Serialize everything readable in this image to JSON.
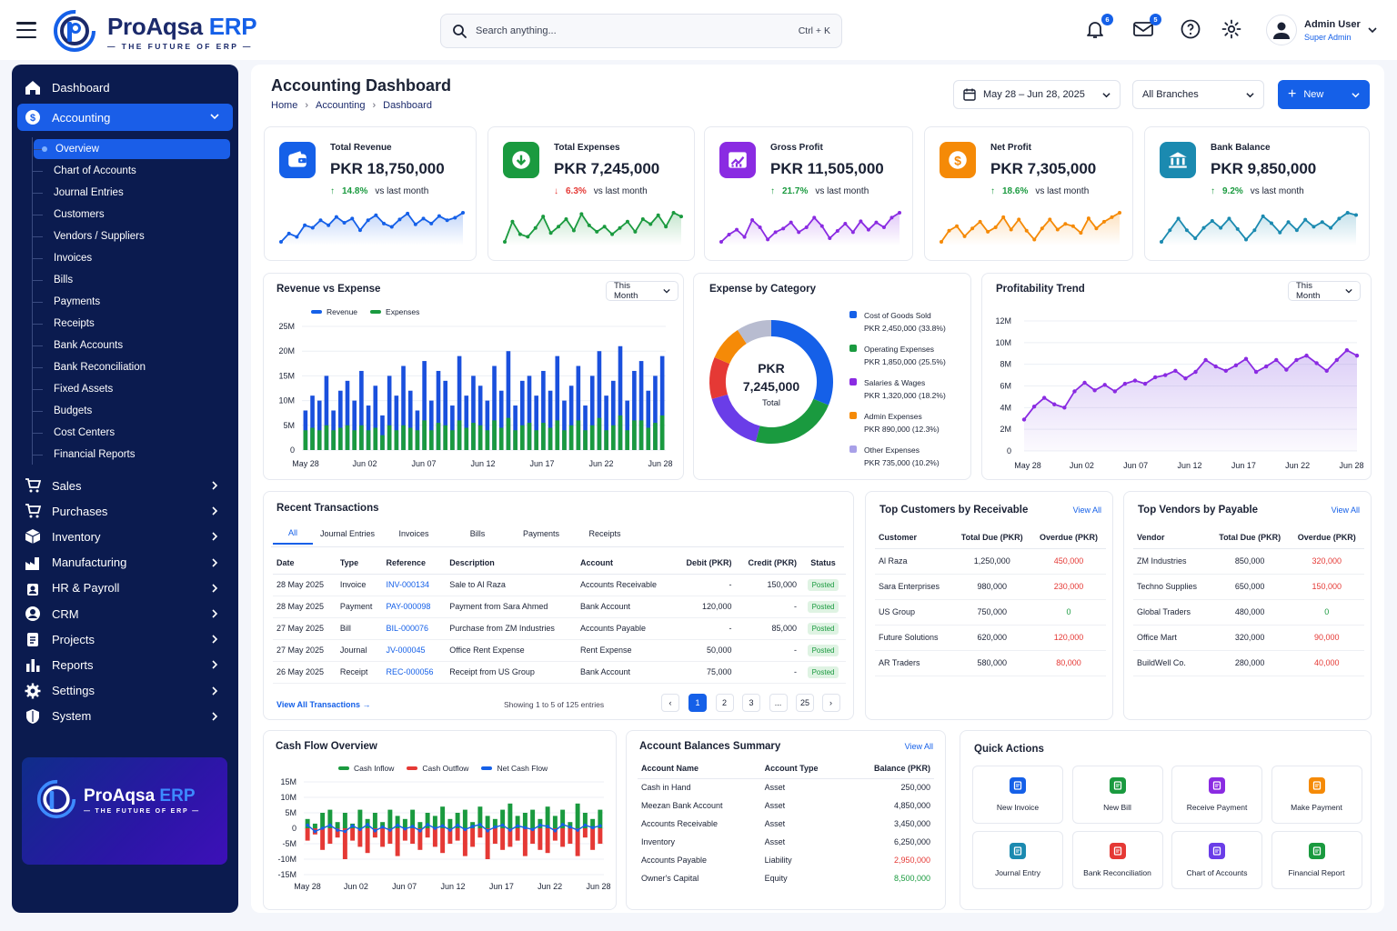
{
  "brand": {
    "name_a": "ProAqsa",
    "name_b": "ERP",
    "tagline": "— THE FUTURE OF ERP —"
  },
  "search": {
    "placeholder": "Search anything...",
    "shortcut": "Ctrl + K"
  },
  "header": {
    "notifications_count": "6",
    "messages_count": "5",
    "user_name": "Admin User",
    "user_role": "Super Admin"
  },
  "colors": {
    "primary": "#1560e8",
    "navy": "#0b1b4f",
    "green": "#1a9a3f",
    "red": "#e53935",
    "purple": "#8a2be2",
    "orange": "#f58a07",
    "teal": "#1b8ab0"
  },
  "sidebar": {
    "dashboard": "Dashboard",
    "accounting": "Accounting",
    "sub": [
      "Overview",
      "Chart of Accounts",
      "Journal Entries",
      "Customers",
      "Vendors / Suppliers",
      "Invoices",
      "Bills",
      "Payments",
      "Receipts",
      "Bank Accounts",
      "Bank Reconciliation",
      "Fixed Assets",
      "Budgets",
      "Cost Centers",
      "Financial Reports"
    ],
    "modules": [
      {
        "label": "Sales",
        "icon": "cart-icon"
      },
      {
        "label": "Purchases",
        "icon": "cart-icon"
      },
      {
        "label": "Inventory",
        "icon": "box-icon"
      },
      {
        "label": "Manufacturing",
        "icon": "factory-icon"
      },
      {
        "label": "HR & Payroll",
        "icon": "people-icon"
      },
      {
        "label": "CRM",
        "icon": "user-circle-icon"
      },
      {
        "label": "Projects",
        "icon": "clipboard-icon"
      },
      {
        "label": "Reports",
        "icon": "bar-chart-icon"
      },
      {
        "label": "Settings",
        "icon": "gear-icon"
      },
      {
        "label": "System",
        "icon": "shield-icon"
      }
    ]
  },
  "page": {
    "title": "Accounting Dashboard",
    "crumbs": [
      "Home",
      "Accounting",
      "Dashboard"
    ],
    "date_range": "May 28 – Jun 28, 2025",
    "branch": "All Branches",
    "new_label": "New"
  },
  "kpis": [
    {
      "label": "Total Revenue",
      "value": "PKR 18,750,000",
      "pct": "14.8%",
      "dir": "up",
      "note": "vs last month",
      "color": "#1560e8",
      "icon": "wallet-icon",
      "spark": [
        3,
        4,
        3.6,
        5,
        4.7,
        5.6,
        5,
        6,
        5.3,
        5.8,
        4.4,
        5.6,
        6.2,
        5.2,
        4.8,
        5.7,
        6.4,
        5.1,
        5.8,
        5.2,
        6.1,
        5.6,
        5.9,
        6.5
      ]
    },
    {
      "label": "Total Expenses",
      "value": "PKR 7,245,000",
      "pct": "6.3%",
      "dir": "down",
      "note": "vs last month",
      "color": "#1a9a3f",
      "icon": "download-circle-icon",
      "spark": [
        4,
        5.6,
        4.6,
        4.4,
        5.1,
        6,
        4.7,
        5.2,
        5.8,
        4.9,
        6.2,
        5.3,
        4.8,
        5.2,
        4.6,
        5.1,
        5.6,
        4.8,
        5.8,
        5.4,
        6.1,
        5.2,
        6.3,
        6
      ]
    },
    {
      "label": "Gross Profit",
      "value": "PKR 11,505,000",
      "pct": "21.7%",
      "dir": "up",
      "note": "vs last month",
      "color": "#8a2be2",
      "icon": "trend-chart-icon",
      "spark": [
        3.6,
        4.2,
        4.6,
        4,
        5.4,
        4.8,
        3.8,
        4.4,
        4.7,
        5.2,
        4.4,
        4.8,
        5.6,
        4.9,
        3.9,
        4.5,
        5.1,
        4.4,
        5.3,
        4.6,
        5.2,
        4.8,
        5.6,
        6
      ]
    },
    {
      "label": "Net Profit",
      "value": "PKR 7,305,000",
      "pct": "18.6%",
      "dir": "up",
      "note": "vs last month",
      "color": "#f58a07",
      "icon": "dollar-icon",
      "spark": [
        3.4,
        4.4,
        4.8,
        3.9,
        4.6,
        5.2,
        4.3,
        4.7,
        5.6,
        4.5,
        5.4,
        4.4,
        3.6,
        4.6,
        5.4,
        4.5,
        5,
        4.8,
        4.2,
        5.5,
        4.6,
        5.2,
        5.6,
        6
      ]
    },
    {
      "label": "Bank Balance",
      "value": "PKR 9,850,000",
      "pct": "9.2%",
      "dir": "up",
      "note": "vs last month",
      "color": "#1b8ab0",
      "icon": "bank-icon",
      "spark": [
        3.6,
        4.6,
        5.6,
        4.6,
        3.9,
        4.8,
        5.4,
        4.8,
        5.6,
        4.7,
        3.8,
        4.6,
        5.8,
        5.2,
        4.4,
        5.3,
        4.6,
        5.5,
        4.9,
        5.3,
        4.8,
        5.6,
        6.1,
        5.9
      ]
    }
  ],
  "rev_exp": {
    "title": "Revenue vs Expense",
    "filter": "This Month",
    "legend": [
      "Revenue",
      "Expenses"
    ]
  },
  "exp_cat": {
    "title": "Expense by Category",
    "center_top": "PKR",
    "center_val": "7,245,000",
    "center_sub": "Total"
  },
  "profit": {
    "title": "Profitability Trend",
    "filter": "This Month"
  },
  "transactions": {
    "title": "Recent Transactions",
    "tabs": [
      "All",
      "Journal Entries",
      "Invoices",
      "Bills",
      "Payments",
      "Receipts"
    ],
    "headers": [
      "Date",
      "Type",
      "Reference",
      "Description",
      "Account",
      "Debit (PKR)",
      "Credit (PKR)",
      "Status"
    ],
    "rows": [
      [
        "28 May 2025",
        "Invoice",
        "INV-000134",
        "Sale to Al Raza",
        "Accounts Receivable",
        "-",
        "150,000",
        "Posted"
      ],
      [
        "28 May 2025",
        "Payment",
        "PAY-000098",
        "Payment from Sara Ahmed",
        "Bank Account",
        "120,000",
        "-",
        "Posted"
      ],
      [
        "27 May 2025",
        "Bill",
        "BIL-000076",
        "Purchase from ZM Industries",
        "Accounts Payable",
        "-",
        "85,000",
        "Posted"
      ],
      [
        "27 May 2025",
        "Journal",
        "JV-000045",
        "Office Rent Expense",
        "Rent Expense",
        "50,000",
        "-",
        "Posted"
      ],
      [
        "26 May 2025",
        "Receipt",
        "REC-000056",
        "Receipt from US Group",
        "Bank Account",
        "75,000",
        "-",
        "Posted"
      ]
    ],
    "view_all": "View All Transactions",
    "showing": "Showing 1 to 5 of 125 entries",
    "pages": [
      "1",
      "2",
      "3",
      "...",
      "25"
    ]
  },
  "customers": {
    "title": "Top Customers by Receivable",
    "view_all": "View All",
    "headers": [
      "Customer",
      "Total Due (PKR)",
      "Overdue (PKR)"
    ],
    "rows": [
      [
        "Al Raza",
        "1,250,000",
        "450,000"
      ],
      [
        "Sara Enterprises",
        "980,000",
        "230,000"
      ],
      [
        "US Group",
        "750,000",
        "0"
      ],
      [
        "Future Solutions",
        "620,000",
        "120,000"
      ],
      [
        "AR Traders",
        "580,000",
        "80,000"
      ]
    ]
  },
  "vendors": {
    "title": "Top Vendors by Payable",
    "view_all": "View All",
    "headers": [
      "Vendor",
      "Total Due (PKR)",
      "Overdue (PKR)"
    ],
    "rows": [
      [
        "ZM Industries",
        "850,000",
        "320,000"
      ],
      [
        "Techno Supplies",
        "650,000",
        "150,000"
      ],
      [
        "Global Traders",
        "480,000",
        "0"
      ],
      [
        "Office Mart",
        "320,000",
        "90,000"
      ],
      [
        "BuildWell Co.",
        "280,000",
        "40,000"
      ]
    ]
  },
  "cashflow": {
    "title": "Cash Flow Overview",
    "legend": [
      "Cash Inflow",
      "Cash Outflow",
      "Net Cash Flow"
    ]
  },
  "balances": {
    "title": "Account Balances Summary",
    "view_all": "View All",
    "headers": [
      "Account Name",
      "Account Type",
      "Balance (PKR)"
    ],
    "rows": [
      [
        "Cash in Hand",
        "Asset",
        "250,000"
      ],
      [
        "Meezan Bank Account",
        "Asset",
        "4,850,000"
      ],
      [
        "Accounts Receivable",
        "Asset",
        "3,450,000"
      ],
      [
        "Inventory",
        "Asset",
        "6,250,000"
      ],
      [
        "Accounts Payable",
        "Liability",
        "2,950,000"
      ],
      [
        "Owner's Capital",
        "Equity",
        "8,500,000"
      ]
    ]
  },
  "quick": {
    "title": "Quick Actions",
    "items": [
      {
        "label": "New Invoice",
        "icon": "invoice-icon",
        "color": "#1560e8"
      },
      {
        "label": "New Bill",
        "icon": "bill-icon",
        "color": "#1a9a3f"
      },
      {
        "label": "Receive Payment",
        "icon": "receive-icon",
        "color": "#8a2be2"
      },
      {
        "label": "Make Payment",
        "icon": "pay-icon",
        "color": "#f58a07"
      },
      {
        "label": "Journal Entry",
        "icon": "journal-icon",
        "color": "#1b8ab0"
      },
      {
        "label": "Bank Reconciliation",
        "icon": "reconcile-icon",
        "color": "#e53935"
      },
      {
        "label": "Chart of Accounts",
        "icon": "accounts-icon",
        "color": "#6a3de8"
      },
      {
        "label": "Financial Report",
        "icon": "report-icon",
        "color": "#1a9a3f"
      }
    ]
  },
  "chart_data": [
    {
      "type": "bar",
      "title": "Revenue vs Expense",
      "x_ticks": [
        "May 28",
        "Jun 02",
        "Jun 07",
        "Jun 12",
        "Jun 17",
        "Jun 22",
        "Jun 28"
      ],
      "y_ticks": [
        "25M",
        "20M",
        "15M",
        "10M",
        "5M",
        "0"
      ],
      "ylim": [
        0,
        25
      ],
      "legend": "top-left",
      "series": [
        {
          "name": "Revenue",
          "values": [
            8,
            11,
            10,
            15,
            8,
            12,
            14,
            10,
            16,
            9,
            13,
            7,
            15,
            11,
            17,
            12,
            8,
            18,
            10,
            16,
            14,
            9,
            19,
            11,
            15,
            13,
            10,
            17,
            12,
            20,
            9,
            14,
            15,
            11,
            16,
            12,
            19,
            10,
            13,
            17,
            9,
            15,
            20,
            11,
            14,
            21,
            10,
            16,
            18,
            12,
            15,
            19
          ]
        },
        {
          "name": "Expenses",
          "values": [
            4,
            4.5,
            4,
            5,
            4,
            4.5,
            5,
            4,
            5,
            4,
            4.5,
            3,
            5,
            4,
            5,
            4.5,
            4,
            6,
            4,
            5.5,
            5,
            4,
            6,
            4.5,
            5.5,
            5,
            4,
            6,
            4.5,
            6.5,
            4,
            5,
            5.5,
            4,
            5.5,
            4.5,
            6,
            4,
            5,
            6,
            4,
            5,
            6.5,
            4,
            5,
            7,
            4,
            6,
            6,
            4.5,
            5.5,
            7
          ]
        }
      ]
    },
    {
      "type": "pie",
      "title": "Expense by Category",
      "slices": [
        {
          "name": "Cost of Goods Sold",
          "label": "PKR 2,450,000 (33.8%)",
          "value": 33.8,
          "color": "#1560e8"
        },
        {
          "name": "Operating Expenses",
          "label": "PKR 1,850,000 (25.5%)",
          "value": 25.5,
          "color": "#1a9a3f"
        },
        {
          "name": "Salaries & Wages",
          "label": "PKR 1,320,000 (18.2%)",
          "value": 18.2,
          "color": "#8a2be2"
        },
        {
          "name": "Admin Expenses",
          "label": "PKR 890,000 (12.3%)",
          "value": 12.3,
          "color": "#f58a07"
        },
        {
          "name": "Other Expenses",
          "label": "PKR 735,000 (10.2%)",
          "value": 10.2,
          "color": "#a8a0e8"
        }
      ],
      "ring_colors": [
        "#1560e8",
        "#1a9a3f",
        "#6a3de8",
        "#e53935",
        "#f58a07",
        "#b8bcd0"
      ]
    },
    {
      "type": "area",
      "title": "Profitability Trend",
      "x_ticks": [
        "May 28",
        "Jun 02",
        "Jun 07",
        "Jun 12",
        "Jun 17",
        "Jun 22",
        "Jun 28"
      ],
      "y_ticks": [
        "12M",
        "10M",
        "8M",
        "6M",
        "4M",
        "2M",
        "0"
      ],
      "ylim": [
        0,
        12
      ],
      "values": [
        2.9,
        4.1,
        4.9,
        4.3,
        4,
        5.5,
        6.3,
        5.6,
        6.1,
        5.5,
        6.2,
        6.5,
        6.2,
        6.8,
        7,
        7.4,
        6.7,
        7.3,
        8.4,
        7.8,
        7.4,
        7.9,
        8.5,
        7.3,
        7.8,
        8.4,
        7.5,
        8.4,
        8.8,
        8.1,
        7.4,
        8.4,
        9.3,
        8.8
      ]
    },
    {
      "type": "bar",
      "title": "Cash Flow Overview",
      "x_ticks": [
        "May 28",
        "Jun 02",
        "Jun 07",
        "Jun 12",
        "Jun 17",
        "Jun 22",
        "Jun 28"
      ],
      "y_ticks": [
        "15M",
        "10M",
        "5M",
        "0",
        "-5M",
        "-10M",
        "-15M"
      ],
      "ylim": [
        -15,
        15
      ],
      "series": [
        {
          "name": "Cash Inflow",
          "values": [
            3,
            1.5,
            5,
            6,
            2,
            5,
            1.5,
            6,
            3,
            5,
            2,
            6,
            4,
            3,
            6,
            2,
            5,
            4,
            7,
            3,
            5,
            6,
            2,
            7,
            4,
            3,
            6,
            8,
            4,
            5,
            6,
            3,
            7,
            4,
            6,
            2,
            8,
            5,
            3,
            6
          ]
        },
        {
          "name": "Cash Outflow",
          "values": [
            -4,
            -2,
            -7,
            -5,
            -3,
            -10,
            -4,
            -6,
            -8,
            -3,
            -6,
            -5,
            -9,
            -4,
            -5,
            -7,
            -3,
            -6,
            -8,
            -5,
            -4,
            -9,
            -6,
            -3,
            -10,
            -5,
            -7,
            -6,
            -4,
            -9,
            -5,
            -7,
            -8,
            -4,
            -6,
            -5,
            -9,
            -3,
            -7,
            -5
          ]
        },
        {
          "name": "Net Cash Flow",
          "values": [
            0.5,
            -0.5,
            0,
            0.5,
            -0.3,
            -0.5,
            0.4,
            -0.2,
            0.6,
            -0.4,
            0.2,
            -0.3,
            0.5,
            -0.1,
            0.3,
            -0.4,
            0.6,
            0,
            0.4,
            -0.3,
            0.5,
            -0.2,
            0.3,
            0.6,
            -0.4,
            0.2,
            0.5,
            -0.3,
            0.4,
            0.1,
            -0.2,
            0.5,
            0.3,
            -0.4,
            0.6,
            0.2,
            -0.3,
            0.5,
            0.1,
            0.4
          ]
        }
      ]
    }
  ]
}
